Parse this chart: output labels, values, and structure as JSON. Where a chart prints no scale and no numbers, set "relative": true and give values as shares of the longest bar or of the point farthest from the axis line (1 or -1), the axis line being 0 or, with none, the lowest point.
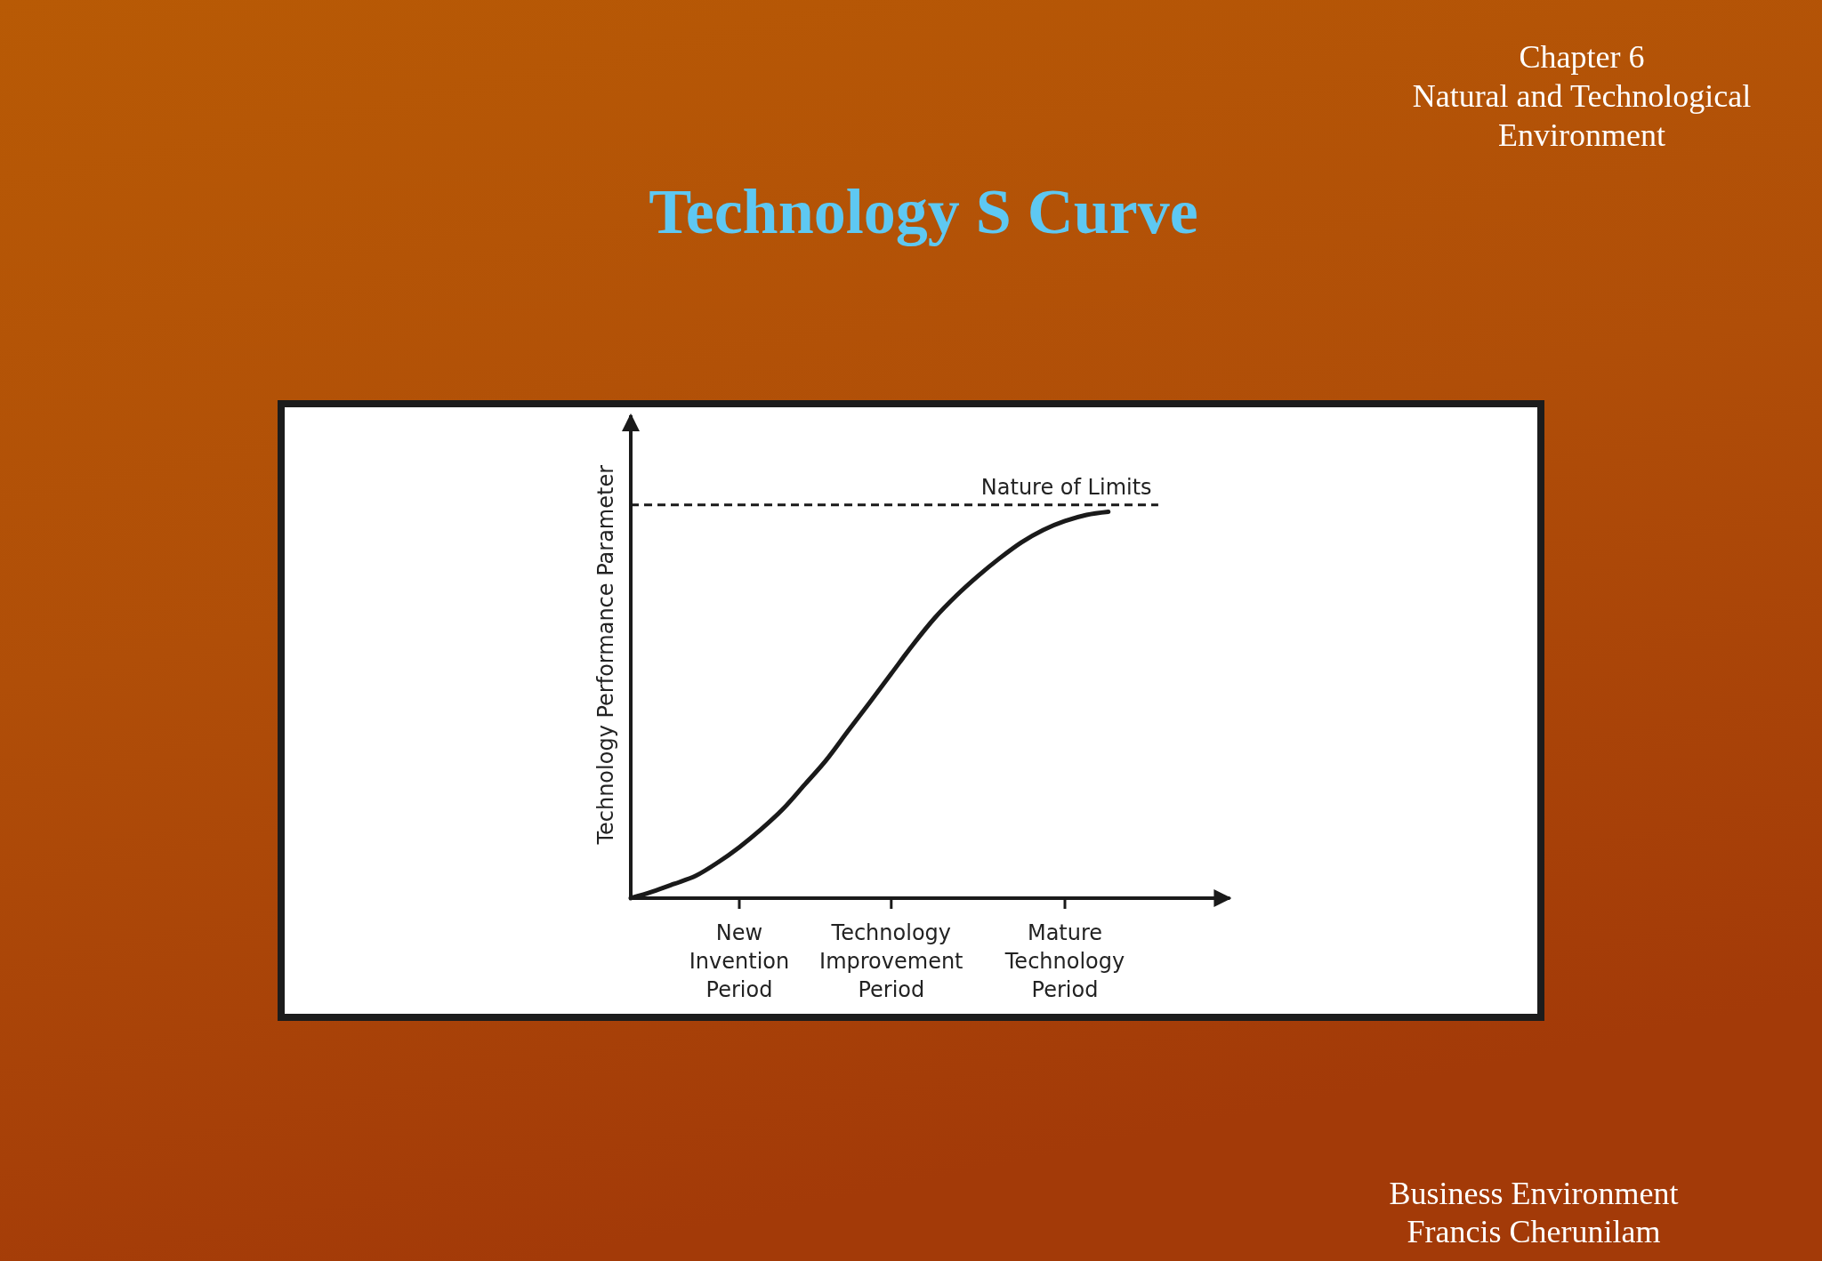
{
  "chart_data": {
    "type": "line",
    "title": "Technology S Curve",
    "subtitle": "Chapter 6\nNatural and Technological\nEnvironment",
    "ylabel": "Technology Performance Parameter",
    "relative": true,
    "categories": [
      null,
      null,
      null,
      null,
      null,
      "New Invention Period",
      null,
      null,
      null,
      null,
      null,
      null,
      "Technology Improvement Period",
      null,
      null,
      null,
      null,
      null,
      null,
      null,
      "Mature Technology Period",
      null,
      null
    ],
    "series": [
      {
        "color": "#1a1a1a",
        "values": [
          0,
          0.017,
          0.037,
          0.058,
          0.092,
          0.132,
          0.178,
          0.23,
          0.293,
          0.357,
          0.432,
          0.506,
          0.581,
          0.656,
          0.725,
          0.783,
          0.834,
          0.88,
          0.921,
          0.953,
          0.976,
          0.992,
          1
        ]
      }
    ],
    "ref_lines": [
      {
        "axis": "y",
        "value": 1.018,
        "label": "Nature of Limits",
        "color": "#1a1a1a",
        "line_style": "dashed"
      }
    ],
    "annotations": [
      "Business Environment",
      "Francis Cherunilam"
    ]
  }
}
